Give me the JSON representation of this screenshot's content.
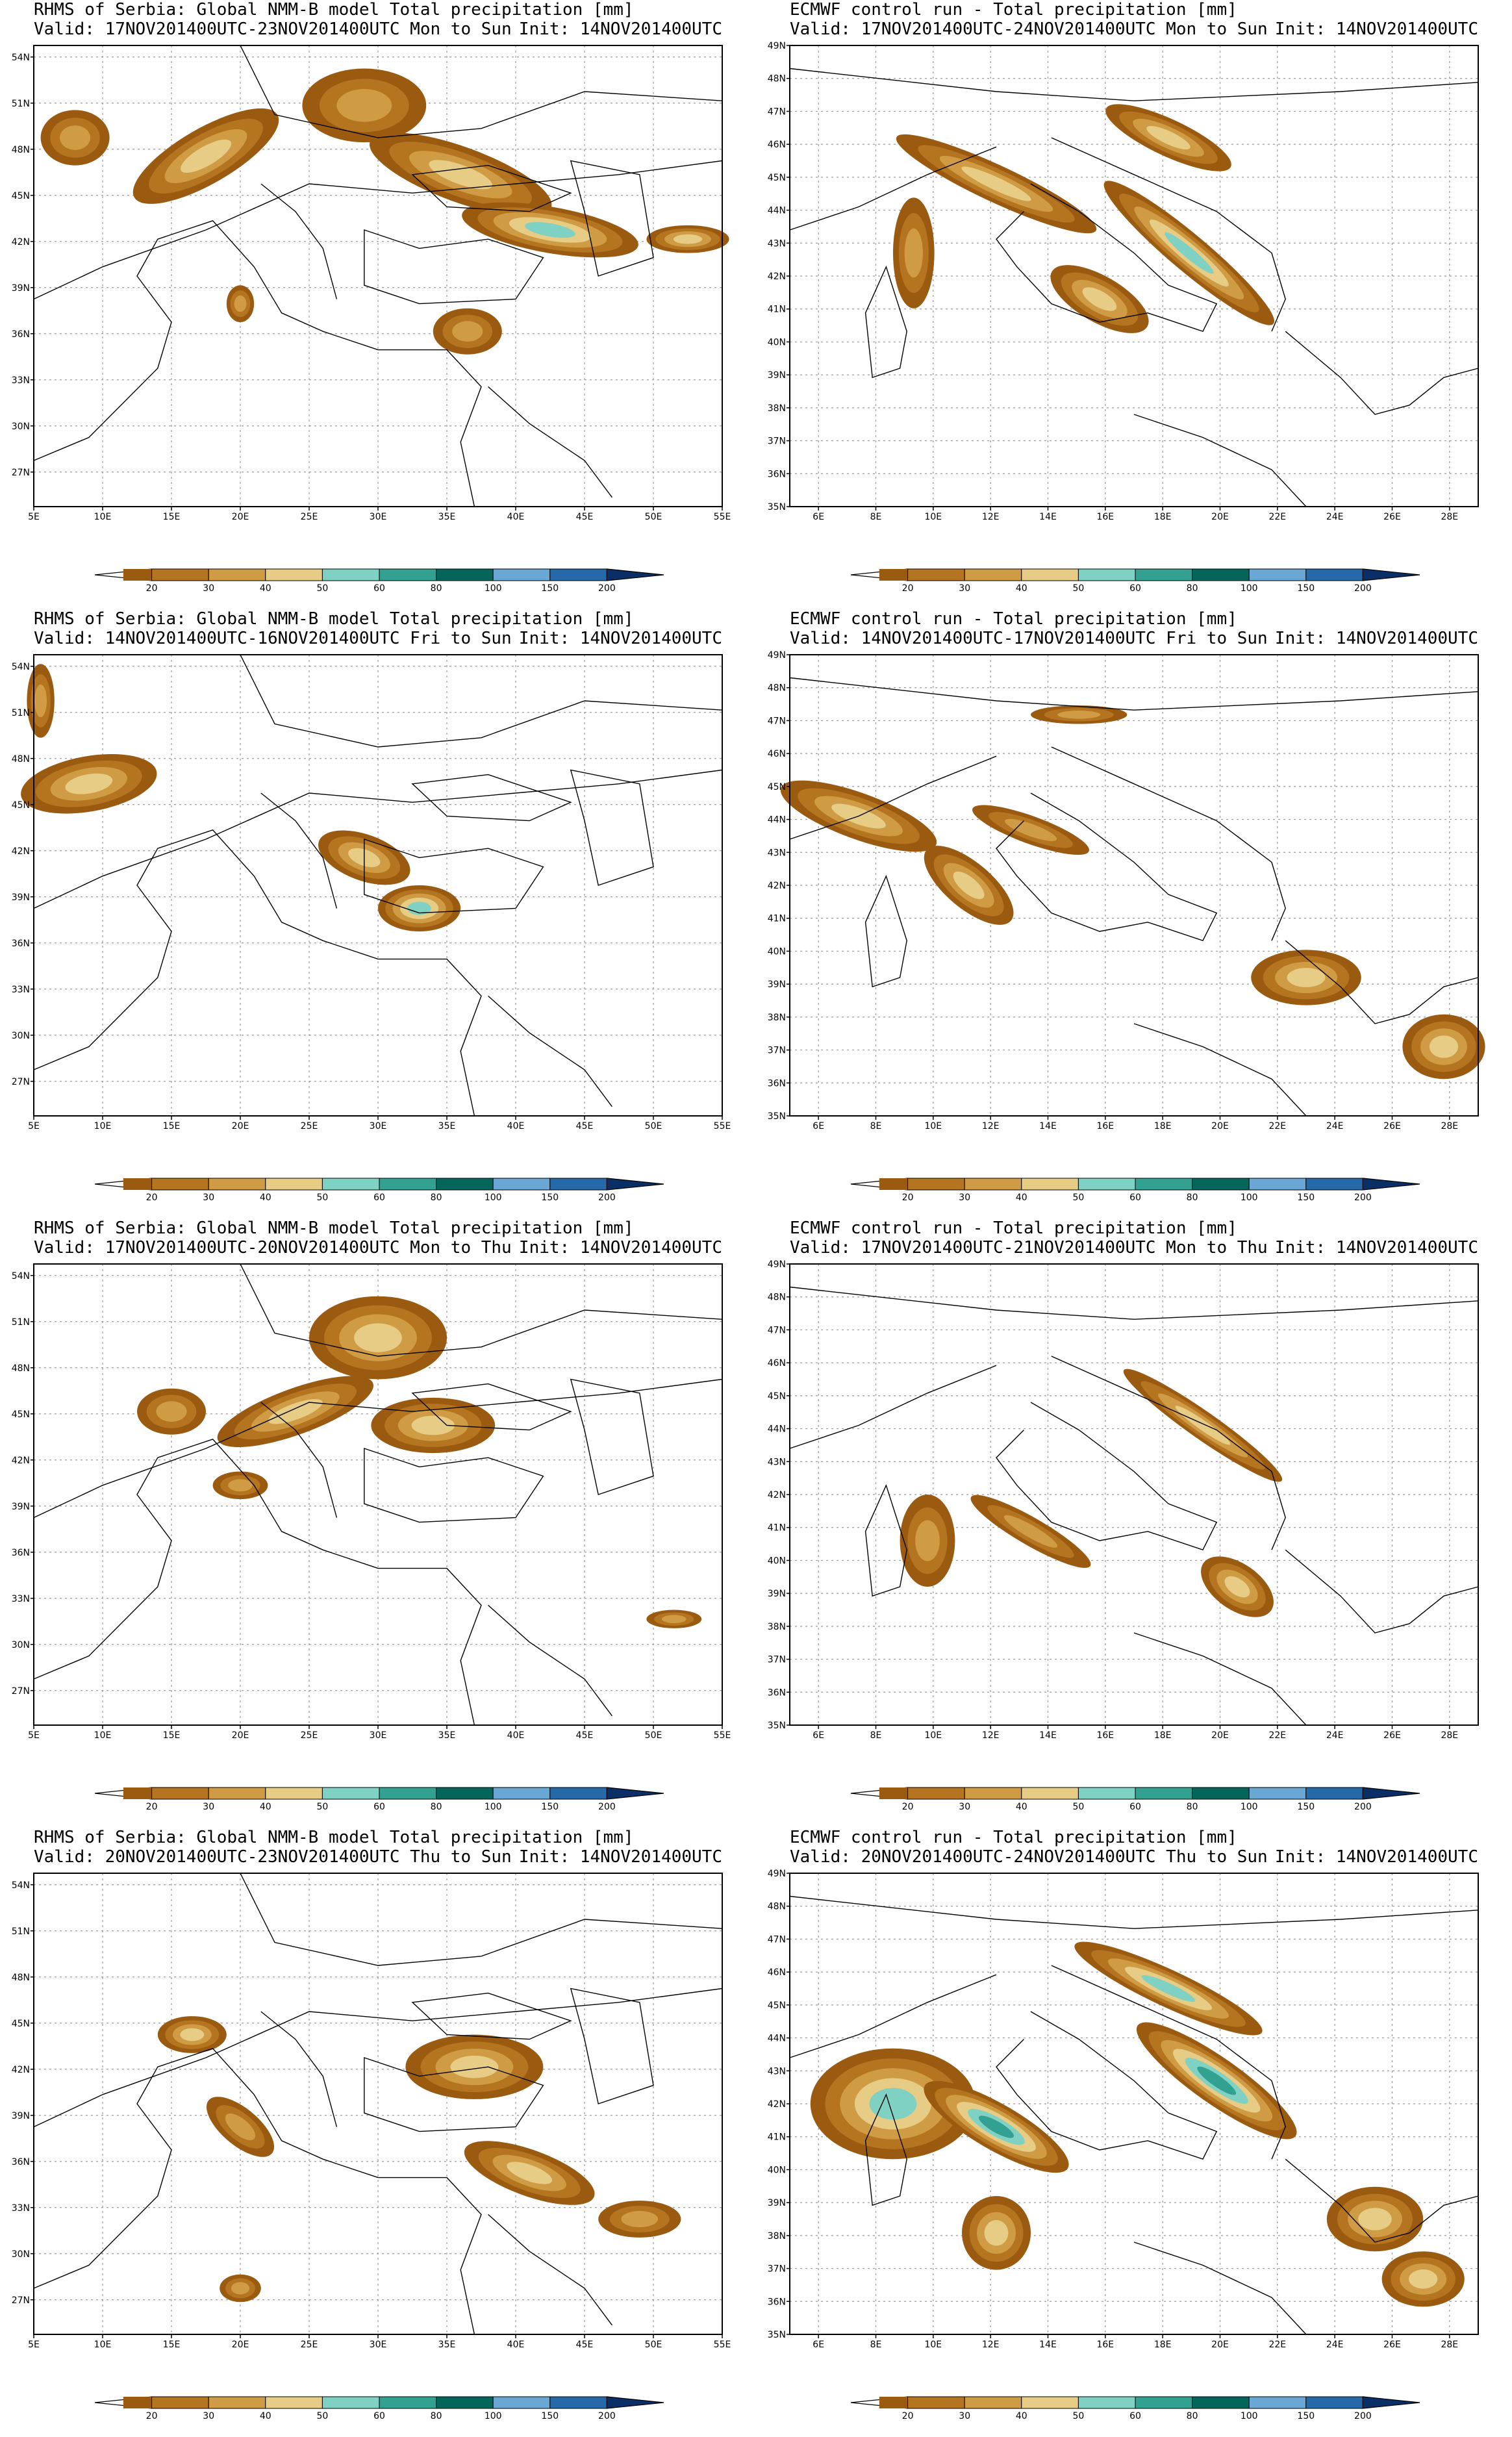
{
  "colors": {
    "c20": "#9a5a10",
    "c30": "#b5741f",
    "c40": "#cf9c45",
    "c50": "#e6cc84",
    "c60": "#7fd1c3",
    "c80": "#33a191",
    "c100": "#04665b",
    "c150": "#6aa7d4",
    "c200": "#2669a8",
    "c200plus": "#0a2e66",
    "grid": "#999999",
    "coast": "#000000"
  },
  "colorbar": {
    "labels": [
      "20",
      "30",
      "40",
      "50",
      "60",
      "80",
      "100",
      "150",
      "200"
    ]
  },
  "nmm_axes": {
    "lon_labels": [
      "5E",
      "10E",
      "15E",
      "20E",
      "25E",
      "30E",
      "35E",
      "40E",
      "45E",
      "50E",
      "55E"
    ],
    "lat_labels": [
      "54N",
      "51N",
      "48N",
      "45N",
      "42N",
      "39N",
      "36N",
      "33N",
      "30N",
      "27N"
    ]
  },
  "ecmwf_axes": {
    "lon_labels": [
      "6E",
      "8E",
      "10E",
      "12E",
      "14E",
      "16E",
      "18E",
      "20E",
      "22E",
      "24E",
      "26E",
      "28E"
    ],
    "lat_labels": [
      "49N",
      "48N",
      "47N",
      "46N",
      "45N",
      "44N",
      "43N",
      "42N",
      "41N",
      "40N",
      "39N",
      "38N",
      "37N",
      "36N",
      "35N"
    ]
  },
  "panels": [
    {
      "model": "nmm",
      "title": "RHMS of Serbia: Global NMM-B model Total precipitation [mm]",
      "valid": "Valid: 17NOV201400UTC-23NOV201400UTC Mon to Sun",
      "init": "Init: 14NOV201400UTC"
    },
    {
      "model": "ecmwf",
      "title": "ECMWF control run - Total precipitation [mm]",
      "valid": "Valid: 17NOV201400UTC-24NOV201400UTC Mon to Sun",
      "init": "Init: 14NOV201400UTC"
    },
    {
      "model": "nmm",
      "title": "RHMS of Serbia: Global NMM-B model Total precipitation [mm]",
      "valid": "Valid: 14NOV201400UTC-16NOV201400UTC Fri to Sun",
      "init": "Init: 14NOV201400UTC"
    },
    {
      "model": "ecmwf",
      "title": "ECMWF control run - Total precipitation [mm]",
      "valid": "Valid: 14NOV201400UTC-17NOV201400UTC Fri to Sun",
      "init": "Init: 14NOV201400UTC"
    },
    {
      "model": "nmm",
      "title": "RHMS of Serbia: Global NMM-B model Total precipitation [mm]",
      "valid": "Valid: 17NOV201400UTC-20NOV201400UTC Mon to Thu",
      "init": "Init: 14NOV201400UTC"
    },
    {
      "model": "ecmwf",
      "title": "ECMWF control run - Total precipitation [mm]",
      "valid": "Valid: 17NOV201400UTC-21NOV201400UTC Mon to Thu",
      "init": "Init: 14NOV201400UTC"
    },
    {
      "model": "nmm",
      "title": "RHMS of Serbia: Global NMM-B model Total precipitation [mm]",
      "valid": "Valid: 20NOV201400UTC-23NOV201400UTC Thu to Sun",
      "init": "Init: 14NOV201400UTC"
    },
    {
      "model": "ecmwf",
      "title": "ECMWF control run - Total precipitation [mm]",
      "valid": "Valid: 20NOV201400UTC-24NOV201400UTC Thu to Sun",
      "init": "Init: 14NOV201400UTC"
    }
  ]
}
